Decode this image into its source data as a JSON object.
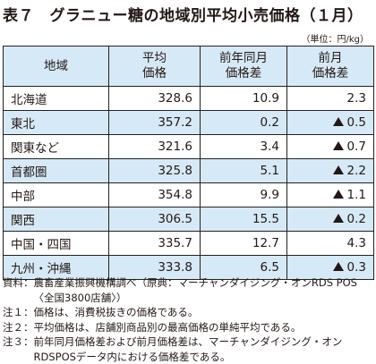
{
  "title": "表７　グラニュー糖の地域別平均小売価格（１月）",
  "unit": "（単位：円/kg）",
  "headers": {
    "region": "地域",
    "avg": [
      "平均",
      "価格"
    ],
    "yoy": [
      "前年同月",
      "価格差"
    ],
    "mom": [
      "前月",
      "価格差"
    ]
  },
  "rows": [
    {
      "region": "北海道",
      "avg": "328.6",
      "yoy": "10.9",
      "mom": "2.3",
      "mom_neg": false
    },
    {
      "region": "東北",
      "avg": "357.2",
      "yoy": "0.2",
      "mom": "0.5",
      "mom_neg": true
    },
    {
      "region": "関東など",
      "avg": "321.6",
      "yoy": "3.4",
      "mom": "0.7",
      "mom_neg": true
    },
    {
      "region": "首都圏",
      "avg": "325.8",
      "yoy": "5.1",
      "mom": "2.2",
      "mom_neg": true
    },
    {
      "region": "中部",
      "avg": "354.8",
      "yoy": "9.9",
      "mom": "1.1",
      "mom_neg": true
    },
    {
      "region": "関西",
      "avg": "306.5",
      "yoy": "15.5",
      "mom": "0.2",
      "mom_neg": true
    },
    {
      "region": "中国・四国",
      "avg": "335.7",
      "yoy": "12.7",
      "mom": "4.3",
      "mom_neg": false
    },
    {
      "region": "九州・沖縄",
      "avg": "333.8",
      "yoy": "6.5",
      "mom": "0.3",
      "mom_neg": true
    }
  ],
  "notes": [
    {
      "label": "資料：",
      "text": "農畜産業振興機構調べ（原典：マーチャンダイジング・オンRDS POS〈全国3800店舗〉）"
    },
    {
      "label": "注１：",
      "text": "価格は、消費税抜きの価格である。"
    },
    {
      "label": "注２：",
      "text": "平均価格は、店舗別商品別の最高価格の単純平均である。"
    },
    {
      "label": "注３：",
      "text": "前年同月価格差および前月価格差は、マーチャンダイジング・オンRDSPOSデータ内における価格差である。"
    }
  ]
}
